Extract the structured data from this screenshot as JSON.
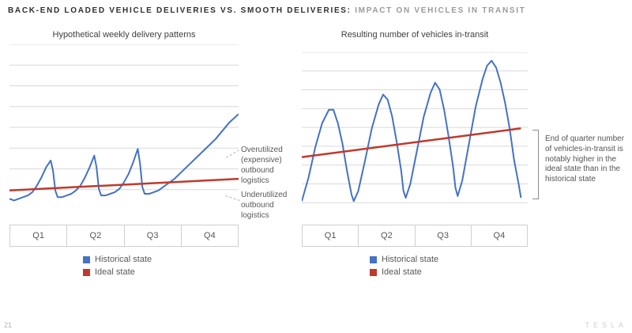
{
  "title": {
    "black": "BACK-END LOADED VEHICLE DELIVERIES VS. SMOOTH DELIVERIES:",
    "gray": " IMPACT ON VEHICLES IN TRANSIT"
  },
  "legend": {
    "historical": "Historical state",
    "ideal": "Ideal state"
  },
  "colors": {
    "historical": "#4472c4",
    "ideal": "#c0392b",
    "grid": "#d9d9d9"
  },
  "annotations": {
    "overutilized": "Overutilized (expensive) outbound logistics",
    "underutilized": "Underutilized outbound logistics",
    "bracket": "End of quarter number of vehicles-in-transit is notably higher in the ideal state than in the historical state"
  },
  "footer": {
    "page": "21",
    "brand": "TESLA"
  },
  "chart_data": [
    {
      "type": "line",
      "title": "Hypothetical weekly delivery patterns",
      "x_categories": [
        "Q1",
        "Q2",
        "Q3",
        "Q4"
      ],
      "gridlines": 8,
      "ylim": [
        0,
        100
      ],
      "legend_position": "bottom",
      "series": [
        {
          "name": "Historical state",
          "color": "#4472c4",
          "points": [
            [
              0,
              7
            ],
            [
              2,
              6
            ],
            [
              4,
              7
            ],
            [
              6,
              8
            ],
            [
              8,
              9
            ],
            [
              10,
              11
            ],
            [
              12,
              15
            ],
            [
              14,
              20
            ],
            [
              16,
              26
            ],
            [
              18,
              30
            ],
            [
              19,
              24
            ],
            [
              20,
              12
            ],
            [
              21,
              8
            ],
            [
              23,
              8
            ],
            [
              25,
              9
            ],
            [
              27,
              10
            ],
            [
              29,
              12
            ],
            [
              31,
              15
            ],
            [
              33,
              20
            ],
            [
              35,
              26
            ],
            [
              37,
              33
            ],
            [
              38,
              26
            ],
            [
              39,
              13
            ],
            [
              40,
              9
            ],
            [
              42,
              9
            ],
            [
              44,
              10
            ],
            [
              46,
              11
            ],
            [
              48,
              13
            ],
            [
              50,
              17
            ],
            [
              52,
              22
            ],
            [
              54,
              29
            ],
            [
              56,
              37
            ],
            [
              57,
              28
            ],
            [
              58,
              14
            ],
            [
              59,
              10
            ],
            [
              61,
              10
            ],
            [
              63,
              11
            ],
            [
              65,
              12
            ],
            [
              67,
              14
            ],
            [
              69,
              16
            ],
            [
              72,
              19
            ],
            [
              75,
              23
            ],
            [
              78,
              27
            ],
            [
              81,
              31
            ],
            [
              84,
              35
            ],
            [
              87,
              39
            ],
            [
              90,
              43
            ],
            [
              93,
              48
            ],
            [
              96,
              53
            ],
            [
              100,
              58
            ]
          ]
        },
        {
          "name": "Ideal state",
          "color": "#c0392b",
          "points": [
            [
              0,
              12
            ],
            [
              100,
              19
            ]
          ]
        }
      ]
    },
    {
      "type": "line",
      "title": "Resulting number of vehicles in-transit",
      "x_categories": [
        "Q1",
        "Q2",
        "Q3",
        "Q4"
      ],
      "gridlines": 9,
      "ylim": [
        0,
        100
      ],
      "legend_position": "bottom",
      "series": [
        {
          "name": "Historical state",
          "color": "#4472c4",
          "points": [
            [
              0,
              12
            ],
            [
              3,
              26
            ],
            [
              6,
              44
            ],
            [
              9,
              58
            ],
            [
              12,
              66
            ],
            [
              14,
              66
            ],
            [
              16,
              58
            ],
            [
              18,
              46
            ],
            [
              20,
              30
            ],
            [
              22,
              16
            ],
            [
              23,
              12
            ],
            [
              25,
              18
            ],
            [
              28,
              36
            ],
            [
              31,
              55
            ],
            [
              34,
              69
            ],
            [
              36,
              75
            ],
            [
              38,
              72
            ],
            [
              40,
              62
            ],
            [
              42,
              47
            ],
            [
              44,
              30
            ],
            [
              45,
              18
            ],
            [
              46,
              14
            ],
            [
              48,
              22
            ],
            [
              51,
              42
            ],
            [
              54,
              62
            ],
            [
              57,
              76
            ],
            [
              59,
              82
            ],
            [
              61,
              78
            ],
            [
              63,
              66
            ],
            [
              65,
              50
            ],
            [
              67,
              32
            ],
            [
              68,
              20
            ],
            [
              69,
              15
            ],
            [
              71,
              24
            ],
            [
              74,
              46
            ],
            [
              77,
              68
            ],
            [
              80,
              84
            ],
            [
              82,
              92
            ],
            [
              84,
              95
            ],
            [
              86,
              91
            ],
            [
              88,
              82
            ],
            [
              90,
              70
            ],
            [
              92,
              55
            ],
            [
              94,
              36
            ],
            [
              96,
              22
            ],
            [
              97,
              14
            ]
          ]
        },
        {
          "name": "Ideal state",
          "color": "#c0392b",
          "points": [
            [
              0,
              38
            ],
            [
              97,
              55
            ]
          ]
        }
      ]
    }
  ]
}
